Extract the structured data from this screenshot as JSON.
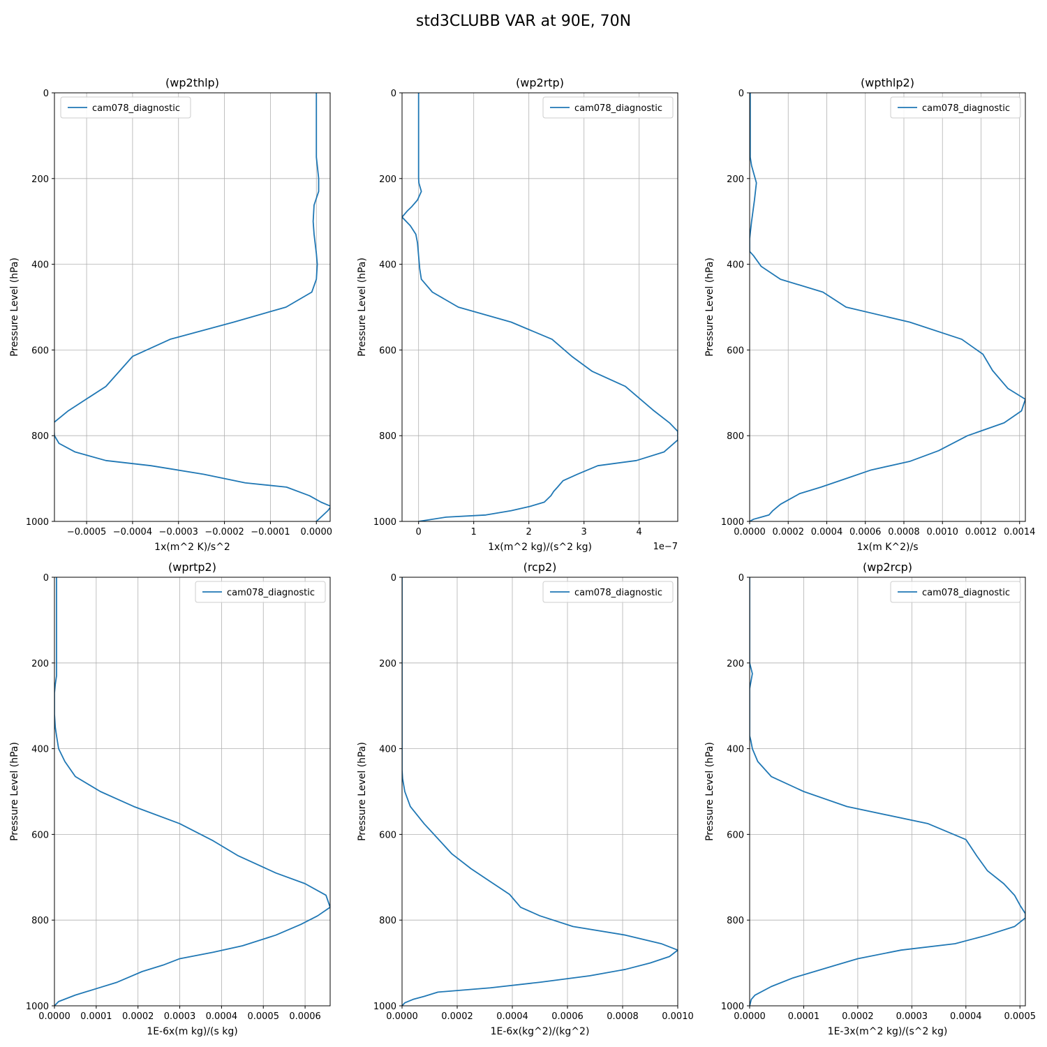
{
  "figure": {
    "title": "std3CLUBB VAR at 90E, 70N"
  },
  "chart_data": [
    {
      "type": "line",
      "title": "(wp2thlp)",
      "xlabel": "1x(m^2 K)/s^2",
      "ylabel": "Pressure Level (hPa)",
      "xlim": [
        -0.00057,
        3e-05
      ],
      "ylim": [
        1000,
        0
      ],
      "xticks": [
        -0.0005,
        -0.0004,
        -0.0003,
        -0.0002,
        -0.0001,
        0.0
      ],
      "xtick_labels": [
        "−0.0005",
        "−0.0004",
        "−0.0003",
        "−0.0002",
        "−0.0001",
        "0.0000"
      ],
      "yticks": [
        0,
        200,
        400,
        600,
        800,
        1000
      ],
      "ytick_labels": [
        "0",
        "200",
        "400",
        "600",
        "800",
        "1000"
      ],
      "x_offset_label": "",
      "grid": true,
      "legend_position": "upper-left",
      "series": [
        {
          "name": "cam078_diagnostic",
          "color": "#1f77b4",
          "x": [
            0.0,
            0.0,
            0.0,
            0.0,
            5e-06,
            5e-06,
            -5e-06,
            -7e-06,
            -5e-06,
            0.0,
            2e-06,
            0.0,
            -1e-05,
            -6.6e-05,
            -0.00018,
            -0.000318,
            -0.0004,
            -0.000458,
            -0.00054,
            -0.000572,
            -0.00057,
            -0.00056,
            -0.000525,
            -0.000458,
            -0.00036,
            -0.000245,
            -0.000155,
            -6.5e-05,
            -1.5e-05,
            1e-05,
            3.2e-05,
            2.5e-05,
            0.0
          ],
          "y": [
            0,
            50,
            100,
            150,
            200,
            230,
            262,
            300,
            330,
            375,
            400,
            435,
            465,
            500,
            535,
            575,
            615,
            685,
            742,
            770,
            800,
            818,
            838,
            858,
            870,
            890,
            910,
            920,
            940,
            955,
            965,
            975,
            1000
          ]
        }
      ]
    },
    {
      "type": "line",
      "title": "(wp2rtp)",
      "xlabel": "1x(m^2 kg)/(s^2 kg)",
      "ylabel": "Pressure Level (hPa)",
      "xlim": [
        -3e-08,
        4.7e-07
      ],
      "ylim": [
        1000,
        0
      ],
      "xticks": [
        0.0,
        1e-07,
        2e-07,
        3e-07,
        4e-07
      ],
      "xtick_labels": [
        "0",
        "1",
        "2",
        "3",
        "4"
      ],
      "yticks": [
        0,
        200,
        400,
        600,
        800,
        1000
      ],
      "ytick_labels": [
        "0",
        "200",
        "400",
        "600",
        "800",
        "1000"
      ],
      "x_offset_label": "1e−7",
      "grid": true,
      "legend_position": "upper-right",
      "series": [
        {
          "name": "cam078_diagnostic",
          "color": "#1f77b4",
          "x": [
            0.0,
            0.0,
            0.0,
            0.0,
            0.0,
            5e-10,
            5e-09,
            -2e-09,
            -1.2e-08,
            -2e-08,
            -3e-08,
            -1.5e-08,
            -5e-09,
            -2e-09,
            0.0,
            2e-09,
            5e-09,
            2.5e-08,
            7.2e-08,
            1.68e-07,
            2.42e-07,
            2.78e-07,
            3.15e-07,
            3.75e-07,
            4.25e-07,
            4.55e-07,
            4.7e-07,
            4.7e-07,
            4.45e-07,
            3.95e-07,
            3.25e-07,
            2.88e-07,
            2.62e-07,
            2.52e-07,
            2.45e-07,
            2.4e-07,
            2.28e-07,
            2.02e-07,
            1.68e-07,
            1.22e-07,
            5e-08,
            0.0
          ],
          "y": [
            0,
            50,
            100,
            150,
            200,
            210,
            230,
            250,
            265,
            275,
            290,
            310,
            330,
            350,
            380,
            410,
            435,
            465,
            500,
            535,
            575,
            615,
            650,
            685,
            740,
            770,
            790,
            810,
            838,
            858,
            870,
            890,
            905,
            920,
            930,
            940,
            955,
            965,
            975,
            985,
            990,
            1000
          ],
          "y_note": ""
        }
      ]
    },
    {
      "type": "line",
      "title": "(wpthlp2)",
      "xlabel": "1x(m K^2)/s",
      "ylabel": "Pressure Level (hPa)",
      "xlim": [
        0.0,
        0.00143
      ],
      "ylim": [
        1000,
        0
      ],
      "xticks": [
        0.0,
        0.0002,
        0.0004,
        0.0006,
        0.0008,
        0.001,
        0.0012,
        0.0014
      ],
      "xtick_labels": [
        "0.0000",
        "0.0002",
        "0.0004",
        "0.0006",
        "0.0008",
        "0.0010",
        "0.0012",
        "0.0014"
      ],
      "yticks": [
        0,
        200,
        400,
        600,
        800,
        1000
      ],
      "ytick_labels": [
        "0",
        "200",
        "400",
        "600",
        "800",
        "1000"
      ],
      "x_offset_label": "",
      "grid": true,
      "legend_position": "upper-right",
      "series": [
        {
          "name": "cam078_diagnostic",
          "color": "#1f77b4",
          "x": [
            3e-06,
            3e-06,
            3e-06,
            3e-06,
            1e-05,
            3.5e-05,
            2.5e-05,
            1e-05,
            0.0,
            0.0,
            2e-05,
            6e-05,
            0.00016,
            0.00038,
            0.0005,
            0.00083,
            0.0011,
            0.00121,
            0.00126,
            0.00134,
            0.00143,
            0.00141,
            0.00132,
            0.00113,
            0.00098,
            0.00083,
            0.00063,
            0.0005,
            0.00037,
            0.00026,
            0.0002,
            0.00016,
            0.00012,
            0.0001,
            6e-05,
            2e-05,
            0.0
          ],
          "y": [
            0,
            50,
            100,
            150,
            170,
            210,
            250,
            300,
            340,
            370,
            380,
            405,
            435,
            465,
            500,
            535,
            575,
            610,
            648,
            690,
            715,
            742,
            770,
            800,
            835,
            860,
            880,
            900,
            920,
            935,
            950,
            960,
            975,
            985,
            990,
            995,
            1000
          ]
        }
      ]
    },
    {
      "type": "line",
      "title": "(wprtp2)",
      "xlabel": "1E-6x(m kg)/(s kg)",
      "ylabel": "Pressure Level (hPa)",
      "xlim": [
        0.0,
        0.00066
      ],
      "ylim": [
        1000,
        0
      ],
      "xticks": [
        0.0,
        0.0001,
        0.0002,
        0.0003,
        0.0004,
        0.0005,
        0.0006
      ],
      "xtick_labels": [
        "0.0000",
        "0.0001",
        "0.0002",
        "0.0003",
        "0.0004",
        "0.0005",
        "0.0006"
      ],
      "yticks": [
        0,
        200,
        400,
        600,
        800,
        1000
      ],
      "ytick_labels": [
        "0",
        "200",
        "400",
        "600",
        "800",
        "1000"
      ],
      "x_offset_label": "",
      "grid": true,
      "legend_position": "upper-right",
      "series": [
        {
          "name": "cam078_diagnostic",
          "color": "#1f77b4",
          "x": [
            5e-06,
            5e-06,
            5e-06,
            5e-06,
            5e-06,
            5e-06,
            2e-06,
            0.0,
            0.0,
            0.0,
            2e-06,
            5e-06,
            1e-05,
            2.5e-05,
            5e-05,
            0.00011,
            0.00019,
            0.0003,
            0.00038,
            0.00044,
            0.00053,
            0.0006,
            0.00065,
            0.00066,
            0.00063,
            0.00059,
            0.00053,
            0.00045,
            0.00038,
            0.0003,
            0.00026,
            0.00021,
            0.00015,
            0.0001,
            5e-05,
            1e-05,
            0.0
          ],
          "y": [
            0,
            50,
            100,
            150,
            200,
            230,
            250,
            270,
            290,
            320,
            350,
            370,
            400,
            430,
            465,
            500,
            535,
            575,
            615,
            650,
            690,
            715,
            742,
            770,
            790,
            810,
            835,
            860,
            875,
            890,
            905,
            920,
            945,
            960,
            975,
            990,
            1000
          ]
        }
      ]
    },
    {
      "type": "line",
      "title": "(rcp2)",
      "xlabel": "1E-6x(kg^2)/(kg^2)",
      "ylabel": "Pressure Level (hPa)",
      "xlim": [
        0.0,
        0.001
      ],
      "ylim": [
        1000,
        0
      ],
      "xticks": [
        0.0,
        0.0002,
        0.0004,
        0.0006,
        0.0008,
        0.001
      ],
      "xtick_labels": [
        "0.0000",
        "0.0002",
        "0.0004",
        "0.0006",
        "0.0008",
        "0.0010"
      ],
      "yticks": [
        0,
        200,
        400,
        600,
        800,
        1000
      ],
      "ytick_labels": [
        "0",
        "200",
        "400",
        "600",
        "800",
        "1000"
      ],
      "x_offset_label": "",
      "grid": true,
      "legend_position": "upper-right",
      "series": [
        {
          "name": "cam078_diagnostic",
          "color": "#1f77b4",
          "x": [
            0.0,
            0.0,
            0.0,
            0.0,
            0.0,
            2e-06,
            1e-05,
            3e-05,
            8e-05,
            0.00013,
            0.00018,
            0.00025,
            0.00032,
            0.00039,
            0.00043,
            0.0005,
            0.00062,
            0.00081,
            0.00094,
            0.001,
            0.00097,
            0.0009,
            0.00081,
            0.00068,
            0.0005,
            0.00032,
            0.00013,
            8e-05,
            4e-05,
            1e-05,
            0.0
          ],
          "y": [
            0,
            200,
            300,
            400,
            450,
            470,
            500,
            535,
            575,
            610,
            645,
            680,
            710,
            740,
            770,
            790,
            815,
            835,
            855,
            870,
            885,
            900,
            915,
            930,
            945,
            958,
            968,
            978,
            985,
            993,
            1000
          ]
        }
      ]
    },
    {
      "type": "line",
      "title": "(wp2rcp)",
      "xlabel": "1E-3x(m^2 kg)/(s^2 kg)",
      "ylabel": "Pressure Level (hPa)",
      "xlim": [
        0.0,
        0.00051
      ],
      "ylim": [
        1000,
        0
      ],
      "xticks": [
        0.0,
        0.0001,
        0.0002,
        0.0003,
        0.0004,
        0.0005
      ],
      "xtick_labels": [
        "0.0000",
        "0.0001",
        "0.0002",
        "0.0003",
        "0.0004",
        "0.0005"
      ],
      "yticks": [
        0,
        200,
        400,
        600,
        800,
        1000
      ],
      "ytick_labels": [
        "0",
        "200",
        "400",
        "600",
        "800",
        "1000"
      ],
      "x_offset_label": "",
      "grid": true,
      "legend_position": "upper-right",
      "series": [
        {
          "name": "cam078_diagnostic",
          "color": "#1f77b4",
          "x": [
            0.0,
            0.0,
            0.0,
            0.0,
            0.0,
            5e-06,
            0.0,
            0.0,
            0.0,
            0.0,
            2e-06,
            5e-06,
            1.5e-05,
            4e-05,
            0.0001,
            0.00018,
            0.00033,
            0.0004,
            0.00042,
            0.00044,
            0.00047,
            0.00049,
            0.0005,
            0.00051,
            0.00051,
            0.00049,
            0.00044,
            0.00038,
            0.00028,
            0.0002,
            0.00016,
            0.00012,
            8e-05,
            4e-05,
            1e-05,
            3e-06,
            0.0
          ],
          "y": [
            0,
            50,
            100,
            150,
            200,
            225,
            260,
            300,
            340,
            370,
            380,
            400,
            430,
            465,
            500,
            535,
            575,
            612,
            650,
            685,
            715,
            742,
            765,
            785,
            795,
            815,
            835,
            855,
            870,
            890,
            905,
            920,
            935,
            955,
            975,
            985,
            1000
          ]
        }
      ]
    }
  ]
}
